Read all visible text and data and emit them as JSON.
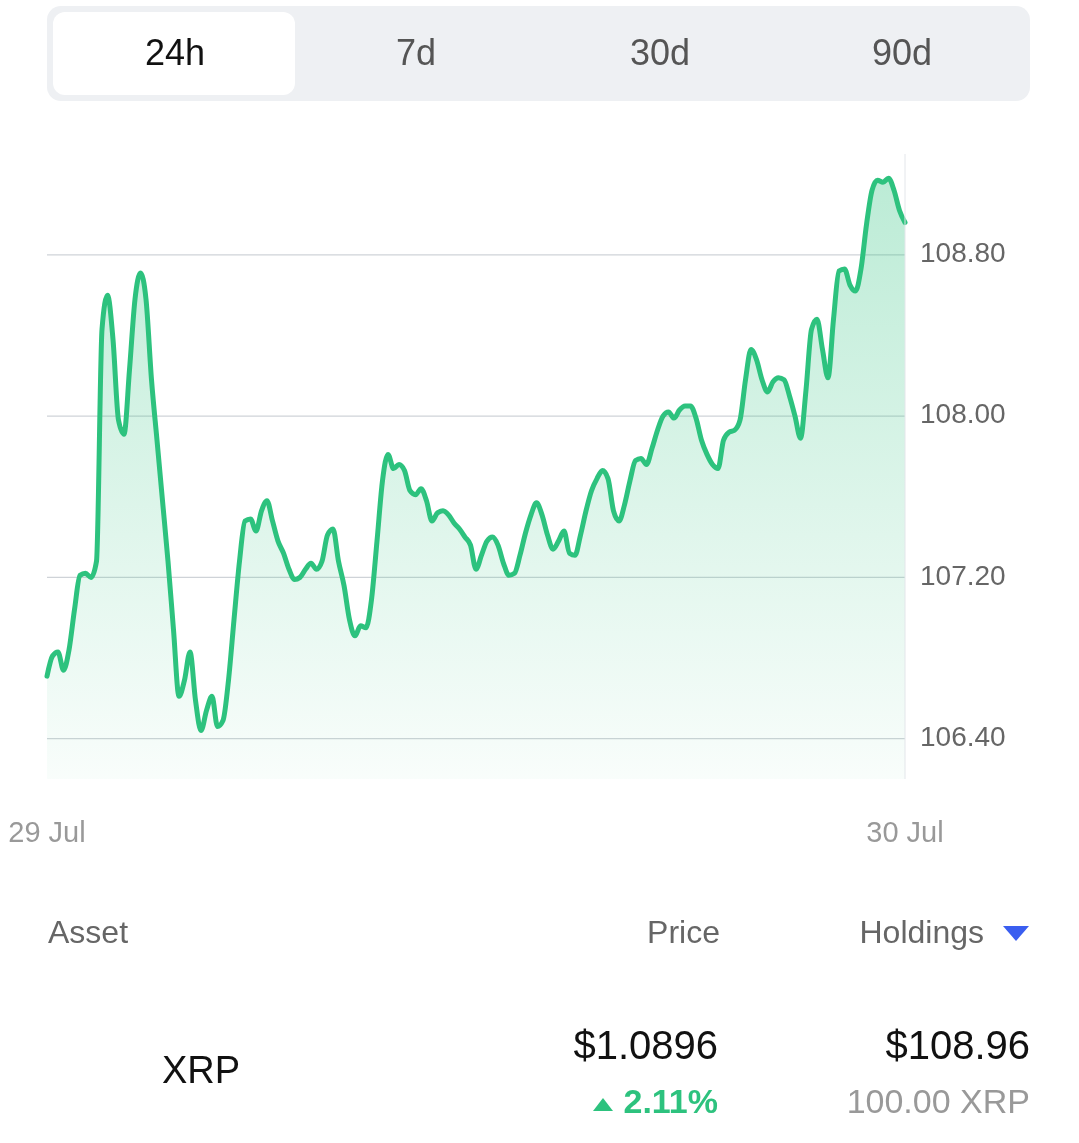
{
  "chart_data": {
    "type": "area",
    "categories": [
      "29 Jul",
      null,
      null,
      null,
      null,
      null,
      null,
      null,
      null,
      null,
      null,
      null,
      null,
      null,
      null,
      null,
      null,
      null,
      null,
      null,
      null,
      null,
      null,
      null,
      null,
      null,
      null,
      null,
      null,
      null,
      null,
      null,
      null,
      null,
      null,
      null,
      null,
      null,
      null,
      null,
      null,
      null,
      null,
      null,
      null,
      null,
      null,
      null,
      null,
      null,
      null,
      null,
      null,
      null,
      null,
      null,
      null,
      null,
      null,
      null,
      null,
      null,
      null,
      null,
      null,
      null,
      null,
      null,
      null,
      null,
      null,
      null,
      null,
      null,
      null,
      null,
      null,
      null,
      null,
      null,
      null,
      null,
      null,
      null,
      null,
      null,
      null,
      null,
      null,
      null,
      null,
      null,
      null,
      null,
      null,
      null,
      null,
      null,
      null,
      null,
      null,
      null,
      null,
      null,
      null,
      null,
      null,
      null,
      null,
      null,
      null,
      null,
      null,
      null,
      null,
      null,
      null,
      null,
      null,
      null,
      null,
      null,
      null,
      null,
      null,
      null,
      null,
      null,
      null,
      null,
      null,
      null,
      null,
      null,
      null,
      null,
      null,
      null,
      null,
      null,
      null,
      null,
      null,
      null,
      null,
      null,
      null,
      null,
      null,
      null,
      null,
      null,
      null,
      null,
      null,
      null,
      "30 Jul"
    ],
    "series": [
      {
        "color": "#2dc27e",
        "values": [
          106.71,
          106.81,
          106.83,
          106.74,
          106.84,
          107.04,
          107.21,
          107.22,
          107.2,
          107.28,
          108.43,
          108.6,
          108.38,
          107.98,
          107.91,
          108.23,
          108.58,
          108.71,
          108.58,
          108.18,
          107.88,
          107.58,
          107.28,
          106.94,
          106.61,
          106.69,
          106.83,
          106.59,
          106.44,
          106.54,
          106.61,
          106.46,
          106.49,
          106.69,
          106.99,
          107.28,
          107.48,
          107.49,
          107.43,
          107.53,
          107.58,
          107.48,
          107.38,
          107.32,
          107.24,
          107.19,
          107.2,
          107.24,
          107.27,
          107.24,
          107.28,
          107.41,
          107.44,
          107.28,
          107.16,
          106.99,
          106.91,
          106.96,
          106.95,
          107.09,
          107.38,
          107.68,
          107.81,
          107.74,
          107.76,
          107.73,
          107.63,
          107.61,
          107.64,
          107.58,
          107.48,
          107.52,
          107.53,
          107.51,
          107.47,
          107.44,
          107.4,
          107.36,
          107.24,
          107.31,
          107.38,
          107.4,
          107.36,
          107.27,
          107.21,
          107.22,
          107.31,
          107.42,
          107.51,
          107.57,
          107.51,
          107.41,
          107.34,
          107.38,
          107.43,
          107.32,
          107.31,
          107.41,
          107.53,
          107.63,
          107.69,
          107.73,
          107.69,
          107.53,
          107.48,
          107.56,
          107.68,
          107.78,
          107.79,
          107.76,
          107.84,
          107.93,
          108.0,
          108.02,
          107.99,
          108.03,
          108.05,
          108.05,
          107.99,
          107.88,
          107.81,
          107.76,
          107.74,
          107.88,
          107.92,
          107.93,
          107.98,
          108.18,
          108.33,
          108.28,
          108.18,
          108.12,
          108.17,
          108.19,
          108.18,
          108.1,
          108.0,
          107.89,
          108.13,
          108.43,
          108.48,
          108.33,
          108.19,
          108.48,
          108.72,
          108.73,
          108.65,
          108.62,
          108.73,
          108.95,
          109.12,
          109.17,
          109.16,
          109.18,
          109.12,
          109.02,
          108.96
        ]
      }
    ],
    "ylim": [
      106.2,
      109.3
    ],
    "yticks": [
      {
        "value": 106.4,
        "label": "106.40"
      },
      {
        "value": 107.2,
        "label": "107.20"
      },
      {
        "value": 108.0,
        "label": "108.00"
      },
      {
        "value": 108.8,
        "label": "108.80"
      }
    ],
    "grid": "y",
    "annotations": [
      "24h",
      "7d",
      "30d",
      "90d",
      "Asset",
      "Price",
      "Holdings",
      "XRP",
      "$1.0896",
      "2.11%",
      "$108.96",
      "100.00 XRP"
    ]
  }
}
